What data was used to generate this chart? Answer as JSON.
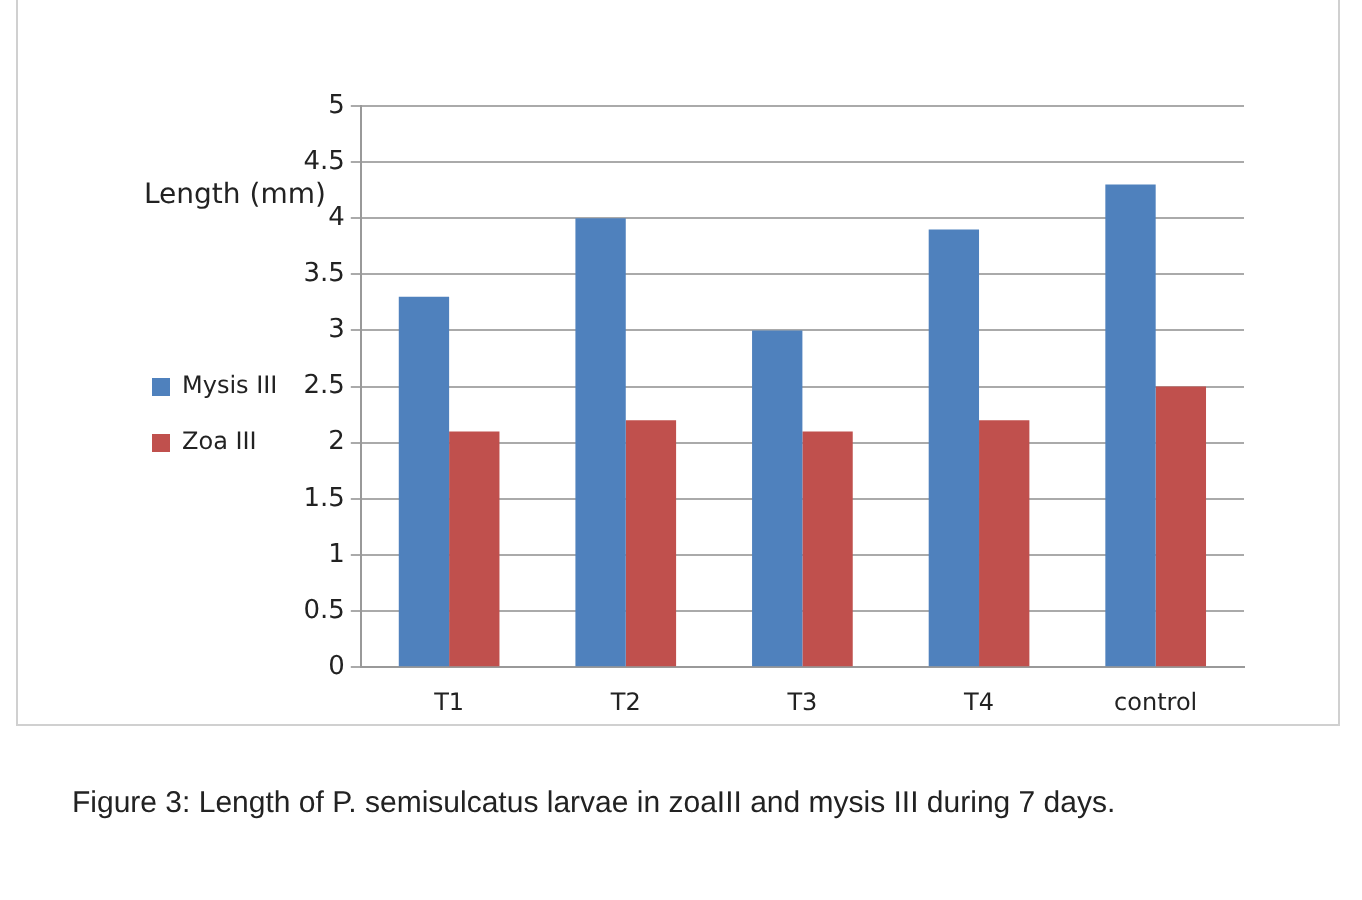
{
  "chart_data": {
    "type": "bar",
    "ylabel": "Length (mm)",
    "categories": [
      "T1",
      "T2",
      "T3",
      "T4",
      "control"
    ],
    "series": [
      {
        "name": "Mysis III",
        "color": "#4f81bd",
        "values": [
          3.3,
          4.0,
          3.0,
          3.9,
          4.3
        ]
      },
      {
        "name": "Zoa III",
        "color": "#c0504d",
        "values": [
          2.1,
          2.2,
          2.1,
          2.2,
          2.5
        ]
      }
    ],
    "ylim": [
      0,
      5
    ],
    "yticks": [
      0,
      0.5,
      1,
      1.5,
      2,
      2.5,
      3,
      3.5,
      4,
      4.5,
      5
    ],
    "grid": "y",
    "legend": "left",
    "annotations": [
      "Figure 3: Length of P. semisulcatus larvae in zoaIII and mysis III during 7 days."
    ]
  }
}
